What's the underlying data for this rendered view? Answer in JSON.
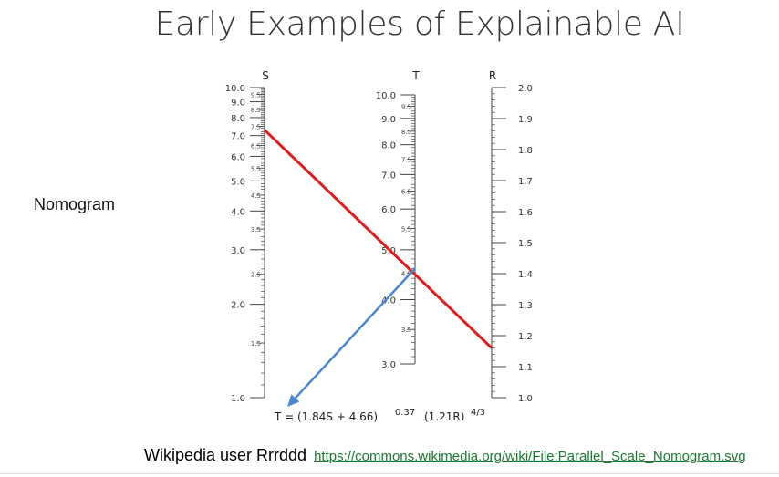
{
  "slide": {
    "title": "Early Examples of Explainable AI",
    "side_label": "Nomogram",
    "credit_text": "Wikipedia user Rrrddd",
    "credit_link": "https://commons.wikimedia.org/wiki/File:Parallel_Scale_Nomogram.svg"
  },
  "nomogram": {
    "scales": {
      "S": {
        "name": "S",
        "major_ticks": [
          "10.0",
          "9.0",
          "8.0",
          "7.0",
          "6.0",
          "5.0",
          "4.0",
          "3.0",
          "2.0",
          "1.0"
        ],
        "minor_labels": [
          "9.5",
          "8.5",
          "7.5",
          "6.5",
          "5.5",
          "4.5",
          "3.5",
          "2.5",
          "1.5"
        ]
      },
      "T": {
        "name": "T",
        "major_ticks": [
          "10.0",
          "9.0",
          "8.0",
          "7.0",
          "6.0",
          "5.0",
          "4.0",
          "3.0"
        ],
        "minor_labels": [
          "9.5",
          "8.5",
          "7.5",
          "6.5",
          "5.5",
          "4.5",
          "3.5"
        ]
      },
      "R": {
        "name": "R",
        "major_ticks": [
          "2.0",
          "1.9",
          "1.8",
          "1.7",
          "1.6",
          "1.5",
          "1.4",
          "1.3",
          "1.2",
          "1.1",
          "1.0"
        ]
      }
    },
    "formula": {
      "main": "T = (1.84S + 4.66)",
      "exp1": "0.37",
      "mid": "(1.21R)",
      "exp2": "4/3"
    },
    "red_line": {
      "s_value": 7.3,
      "r_value": 1.16
    },
    "blue_arrow": {
      "t_value": 4.6
    },
    "colors": {
      "red_line": "#e31b1b",
      "blue_arrow": "#4a86d8",
      "axis": "#444444"
    }
  }
}
